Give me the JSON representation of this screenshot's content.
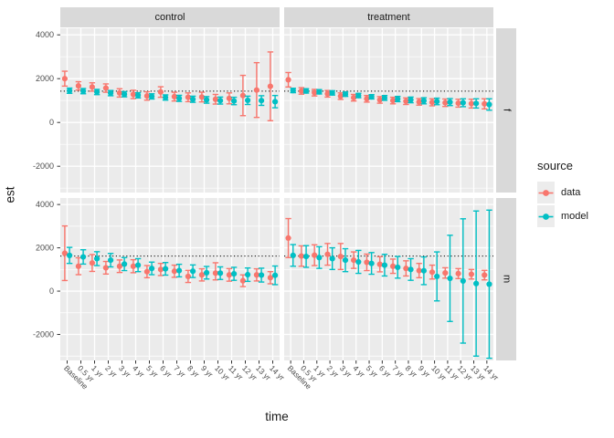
{
  "figure": {
    "y_axis_title": "est",
    "x_axis_title": "time",
    "col_facets": [
      "control",
      "treatment"
    ],
    "row_facets": [
      "f",
      "m"
    ],
    "legend": {
      "title": "source",
      "items": [
        {
          "label": "data",
          "color": "#F8766D"
        },
        {
          "label": "model",
          "color": "#00BFC4"
        }
      ]
    }
  },
  "chart_data": {
    "type": "scatter",
    "subtype": "pointrange-faceted",
    "title": "",
    "xlabel": "time",
    "ylabel": "est",
    "categories": [
      "Baseline",
      "0.5 yr",
      "1 yr",
      "2 yr",
      "3 yr",
      "4 yr",
      "5 yr",
      "6 yr",
      "7 yr",
      "8 yr",
      "9 yr",
      "10 yr",
      "11 yr",
      "12 yr",
      "13 yr",
      "14 yr"
    ],
    "y_ticks": [
      4000,
      2000,
      0,
      -2000
    ],
    "ylim": [
      -3200,
      4300
    ],
    "grid": true,
    "legend_position": "right",
    "ref_lines": {
      "f": 1430,
      "m": 1620
    },
    "colors": {
      "data": "#F8766D",
      "model": "#00BFC4"
    },
    "panel_bg": "#EBEBEB",
    "panels": [
      {
        "col": "control",
        "row": "f",
        "series": [
          {
            "name": "data",
            "est": [
              2000,
              1670,
              1620,
              1570,
              1350,
              1280,
              1210,
              1390,
              1180,
              1150,
              1160,
              1060,
              1100,
              1230,
              1480,
              1650
            ],
            "lo": [
              1660,
              1480,
              1430,
              1380,
              1160,
              1090,
              1020,
              1150,
              980,
              950,
              940,
              840,
              850,
              310,
              230,
              80
            ],
            "hi": [
              2340,
              1860,
              1810,
              1760,
              1540,
              1470,
              1400,
              1630,
              1380,
              1350,
              1380,
              1280,
              1350,
              2150,
              2730,
              3220
            ]
          },
          {
            "name": "model",
            "est": [
              1450,
              1430,
              1390,
              1340,
              1290,
              1240,
              1190,
              1140,
              1100,
              1060,
              1030,
              1000,
              980,
              1010,
              1000,
              950
            ],
            "lo": [
              1330,
              1310,
              1270,
              1220,
              1170,
              1120,
              1070,
              1020,
              960,
              920,
              880,
              840,
              810,
              820,
              780,
              670
            ],
            "hi": [
              1570,
              1550,
              1510,
              1460,
              1410,
              1360,
              1310,
              1260,
              1240,
              1200,
              1180,
              1160,
              1150,
              1200,
              1220,
              1230
            ]
          }
        ]
      },
      {
        "col": "treatment",
        "row": "f",
        "series": [
          {
            "name": "data",
            "est": [
              1950,
              1440,
              1360,
              1310,
              1200,
              1130,
              1080,
              1030,
              1000,
              970,
              940,
              920,
              900,
              880,
              860,
              850
            ],
            "lo": [
              1620,
              1290,
              1210,
              1160,
              1050,
              980,
              930,
              880,
              850,
              820,
              790,
              760,
              730,
              700,
              660,
              620
            ],
            "hi": [
              2280,
              1590,
              1510,
              1460,
              1350,
              1280,
              1230,
              1180,
              1150,
              1120,
              1090,
              1080,
              1070,
              1060,
              1060,
              1080
            ]
          },
          {
            "name": "model",
            "est": [
              1460,
              1440,
              1400,
              1350,
              1290,
              1230,
              1170,
              1120,
              1070,
              1030,
              990,
              960,
              930,
              900,
              870,
              820
            ],
            "lo": [
              1360,
              1340,
              1300,
              1250,
              1190,
              1130,
              1070,
              1010,
              950,
              900,
              850,
              810,
              770,
              720,
              660,
              560
            ],
            "hi": [
              1560,
              1540,
              1500,
              1450,
              1390,
              1330,
              1270,
              1230,
              1190,
              1160,
              1130,
              1110,
              1090,
              1080,
              1080,
              1080
            ]
          }
        ]
      },
      {
        "col": "control",
        "row": "m",
        "series": [
          {
            "name": "data",
            "est": [
              1750,
              1150,
              1300,
              1080,
              1150,
              1150,
              900,
              1000,
              920,
              680,
              750,
              830,
              750,
              480,
              750,
              620
            ],
            "lo": [
              490,
              760,
              910,
              790,
              860,
              850,
              620,
              720,
              640,
              400,
              470,
              520,
              460,
              210,
              470,
              340
            ],
            "hi": [
              3010,
              1540,
              1690,
              1370,
              1440,
              1450,
              1180,
              1280,
              1200,
              960,
              1030,
              1310,
              1040,
              750,
              1030,
              900
            ]
          },
          {
            "name": "model",
            "est": [
              1650,
              1580,
              1500,
              1430,
              1250,
              1200,
              1050,
              1030,
              950,
              920,
              850,
              830,
              800,
              760,
              740,
              730
            ],
            "lo": [
              1280,
              1250,
              1180,
              1120,
              950,
              900,
              760,
              740,
              660,
              630,
              560,
              540,
              500,
              450,
              420,
              300
            ],
            "hi": [
              2020,
              1910,
              1820,
              1740,
              1550,
              1500,
              1340,
              1320,
              1240,
              1210,
              1140,
              1120,
              1100,
              1070,
              1060,
              1160
            ]
          }
        ]
      },
      {
        "col": "treatment",
        "row": "m",
        "series": [
          {
            "name": "data",
            "est": [
              2450,
              1620,
              1660,
              1700,
              1600,
              1430,
              1330,
              1240,
              1150,
              1050,
              950,
              880,
              840,
              810,
              780,
              740
            ],
            "lo": [
              1550,
              1150,
              1180,
              1200,
              1000,
              1050,
              950,
              890,
              820,
              700,
              620,
              560,
              600,
              580,
              560,
              520
            ],
            "hi": [
              3350,
              2090,
              2140,
              2200,
              2200,
              1810,
              1710,
              1590,
              1480,
              1400,
              1280,
              1200,
              1080,
              1040,
              1000,
              960
            ]
          },
          {
            "name": "model",
            "est": [
              1650,
              1600,
              1550,
              1500,
              1430,
              1350,
              1280,
              1200,
              1100,
              1000,
              940,
              680,
              590,
              470,
              350,
              320
            ],
            "lo": [
              1150,
              1100,
              1050,
              1000,
              900,
              820,
              780,
              700,
              600,
              500,
              300,
              -450,
              -1400,
              -2400,
              -3000,
              -3100
            ],
            "hi": [
              2150,
              2100,
              2050,
              2000,
              1960,
              1880,
              1780,
              1700,
              1600,
              1500,
              1580,
              1810,
              2580,
              3340,
              3700,
              3740
            ]
          }
        ]
      }
    ]
  }
}
